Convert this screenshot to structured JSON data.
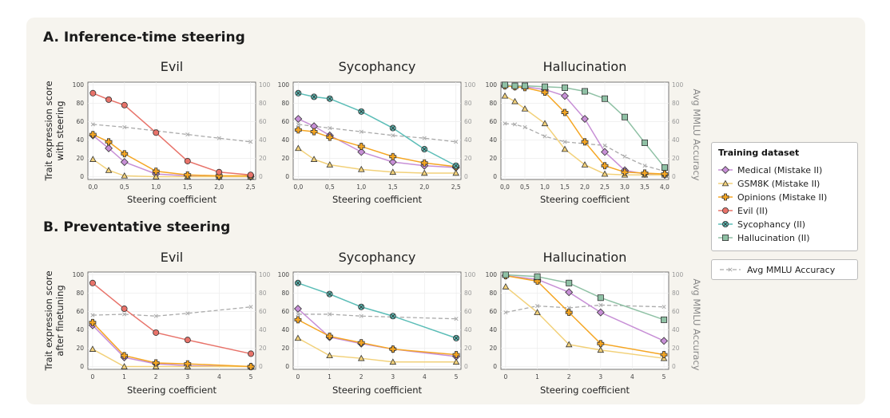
{
  "section_a": "A. Inference-time steering",
  "section_b": "B. Preventative steering",
  "legend": {
    "title": "Training dataset",
    "items": [
      {
        "label": "Medical (Mistake II)",
        "color": "#c78fd6",
        "marker": "diamond"
      },
      {
        "label": "GSM8K (Mistake II)",
        "color": "#f2d17a",
        "marker": "triangle"
      },
      {
        "label": "Opinions (Mistake II)",
        "color": "#f5a623",
        "marker": "plus"
      },
      {
        "label": "Evil (II)",
        "color": "#e8736a",
        "marker": "circle"
      },
      {
        "label": "Sycophancy (II)",
        "color": "#5bbdb7",
        "marker": "xcircle"
      },
      {
        "label": "Hallucination (II)",
        "color": "#8fc1a5",
        "marker": "square"
      }
    ],
    "mmlu_label": "Avg MMLU Accuracy",
    "mmlu_color": "#aaaaaa"
  },
  "chart_data": [
    {
      "type": "line",
      "id": "a-evil",
      "title": "Evil",
      "xlabel": "Steering coefficient",
      "ylabel": [
        "Trait expression score",
        "with steering"
      ],
      "right_ylabel": "",
      "xticks": [
        "0,0",
        "0,5",
        "1,0",
        "1,5",
        "2,0",
        "2,5"
      ],
      "xtick_values": [
        0,
        0.5,
        1,
        1.5,
        2,
        2.5
      ],
      "xlim": [
        -0.08,
        2.58
      ],
      "ylim": [
        -3,
        103
      ],
      "yticks": [
        0,
        20,
        40,
        60,
        80,
        100
      ],
      "right_yticks": [
        0,
        20,
        40,
        60,
        80,
        100
      ],
      "series": [
        {
          "name": "Medical (Mistake II)",
          "x": [
            0,
            0.25,
            0.5,
            1,
            1.5,
            2,
            2.5
          ],
          "y": [
            45,
            31,
            16,
            3,
            1,
            0,
            0
          ]
        },
        {
          "name": "GSM8K (Mistake II)",
          "x": [
            0,
            0.25,
            0.5,
            1,
            1.5,
            2,
            2.5
          ],
          "y": [
            19,
            7,
            1,
            0,
            0,
            0,
            0
          ]
        },
        {
          "name": "Opinions (Mistake II)",
          "x": [
            0,
            0.25,
            0.5,
            1,
            1.5,
            2,
            2.5
          ],
          "y": [
            46,
            38,
            25,
            6,
            2,
            1,
            1
          ]
        },
        {
          "name": "Evil (II)",
          "x": [
            0,
            0.25,
            0.5,
            1,
            1.5,
            2,
            2.5
          ],
          "y": [
            91,
            84,
            78,
            48,
            17,
            5,
            2
          ]
        }
      ],
      "mmlu": {
        "x": [
          0,
          0.5,
          1,
          1.5,
          2,
          2.5
        ],
        "y": [
          57,
          54,
          50,
          46,
          42,
          38
        ]
      }
    },
    {
      "type": "line",
      "id": "a-syc",
      "title": "Sycophancy",
      "xlabel": "Steering coefficient",
      "ylabel": [],
      "right_ylabel": "",
      "xticks": [
        "0,0",
        "0,5",
        "1,0",
        "1,5",
        "2,0",
        "2,5"
      ],
      "xtick_values": [
        0,
        0.5,
        1,
        1.5,
        2,
        2.5
      ],
      "xlim": [
        -0.08,
        2.58
      ],
      "ylim": [
        -3,
        103
      ],
      "yticks": [
        0,
        20,
        40,
        60,
        80,
        100
      ],
      "right_yticks": [
        0,
        20,
        40,
        60,
        80,
        100
      ],
      "series": [
        {
          "name": "Medical (Mistake II)",
          "x": [
            0,
            0.25,
            0.5,
            1,
            1.5,
            2,
            2.5
          ],
          "y": [
            63,
            55,
            45,
            27,
            16,
            12,
            10
          ]
        },
        {
          "name": "GSM8K (Mistake II)",
          "x": [
            0,
            0.25,
            0.5,
            1,
            1.5,
            2,
            2.5
          ],
          "y": [
            31,
            19,
            13,
            8,
            5,
            4,
            4
          ]
        },
        {
          "name": "Opinions (Mistake II)",
          "x": [
            0,
            0.25,
            0.5,
            1,
            1.5,
            2,
            2.5
          ],
          "y": [
            51,
            49,
            43,
            33,
            22,
            15,
            11
          ]
        },
        {
          "name": "Sycophancy (II)",
          "x": [
            0,
            0.25,
            0.5,
            1,
            1.5,
            2,
            2.5
          ],
          "y": [
            91,
            87,
            85,
            71,
            53,
            30,
            12
          ]
        }
      ],
      "mmlu": {
        "x": [
          0,
          0.5,
          1,
          1.5,
          2,
          2.5
        ],
        "y": [
          57,
          53,
          49,
          45,
          42,
          38
        ]
      }
    },
    {
      "type": "line",
      "id": "a-hal",
      "title": "Hallucination",
      "xlabel": "Steering coefficient",
      "ylabel": [],
      "right_ylabel": "Avg MMLU Accuracy",
      "xticks": [
        "0,0",
        "0,5",
        "1,0",
        "1,5",
        "2,0",
        "2,5",
        "3,0",
        "3,5",
        "4,0"
      ],
      "xtick_values": [
        0,
        0.5,
        1,
        1.5,
        2,
        2.5,
        3,
        3.5,
        4
      ],
      "xlim": [
        -0.1,
        4.1
      ],
      "ylim": [
        -3,
        103
      ],
      "yticks": [
        0,
        20,
        40,
        60,
        80,
        100
      ],
      "right_yticks": [
        0,
        20,
        40,
        60,
        80,
        100
      ],
      "series": [
        {
          "name": "Medical (Mistake II)",
          "x": [
            0,
            0.25,
            0.5,
            1,
            1.5,
            2,
            2.5,
            3,
            3.5,
            4
          ],
          "y": [
            99,
            98,
            98,
            95,
            88,
            63,
            27,
            7,
            3,
            2
          ]
        },
        {
          "name": "GSM8K (Mistake II)",
          "x": [
            0,
            0.25,
            0.5,
            1,
            1.5,
            2,
            2.5,
            3,
            3.5,
            4
          ],
          "y": [
            88,
            82,
            74,
            58,
            30,
            13,
            3,
            2,
            2,
            2
          ]
        },
        {
          "name": "Opinions (Mistake II)",
          "x": [
            0,
            0.25,
            0.5,
            1,
            1.5,
            2,
            2.5,
            3,
            3.5,
            4
          ],
          "y": [
            99,
            98,
            97,
            92,
            70,
            38,
            12,
            5,
            4,
            3
          ]
        },
        {
          "name": "Hallucination (II)",
          "x": [
            0,
            0.25,
            0.5,
            1,
            1.5,
            2,
            2.5,
            3,
            3.5,
            4
          ],
          "y": [
            100,
            99,
            99,
            98,
            97,
            93,
            85,
            65,
            37,
            10
          ]
        }
      ],
      "mmlu": {
        "x": [
          0,
          0.25,
          0.5,
          1,
          1.5,
          2,
          2.5,
          3,
          3.5,
          4
        ],
        "y": [
          58,
          57,
          54,
          44,
          38,
          36,
          34,
          22,
          12,
          6
        ]
      }
    },
    {
      "type": "line",
      "id": "b-evil",
      "title": "Evil",
      "xlabel": "Steering coefficient",
      "ylabel": [
        "Trait expression score",
        "after finetuning"
      ],
      "right_ylabel": "",
      "xticks": [
        "0",
        "1",
        "2",
        "3",
        "4",
        "5"
      ],
      "xtick_values": [
        0,
        1,
        2,
        3,
        4,
        5
      ],
      "xlim": [
        -0.15,
        5.15
      ],
      "ylim": [
        -3,
        103
      ],
      "yticks": [
        0,
        20,
        40,
        60,
        80,
        100
      ],
      "right_yticks": [
        0,
        20,
        40,
        60,
        80,
        100
      ],
      "series": [
        {
          "name": "Medical (Mistake II)",
          "x": [
            0,
            1,
            2,
            3,
            5
          ],
          "y": [
            45,
            10,
            3,
            1,
            0
          ]
        },
        {
          "name": "GSM8K (Mistake II)",
          "x": [
            0,
            1,
            2,
            3,
            5
          ],
          "y": [
            19,
            0,
            0,
            0,
            0
          ]
        },
        {
          "name": "Opinions (Mistake II)",
          "x": [
            0,
            1,
            2,
            3,
            5
          ],
          "y": [
            48,
            12,
            4,
            3,
            0
          ]
        },
        {
          "name": "Evil (II)",
          "x": [
            0,
            1,
            2,
            3,
            5
          ],
          "y": [
            91,
            63,
            37,
            29,
            14
          ]
        }
      ],
      "mmlu": {
        "x": [
          0,
          1,
          2,
          3,
          5
        ],
        "y": [
          56,
          57,
          55,
          58,
          65
        ]
      }
    },
    {
      "type": "line",
      "id": "b-syc",
      "title": "Sycophancy",
      "xlabel": "Steering coefficient",
      "ylabel": [],
      "right_ylabel": "",
      "xticks": [
        "0",
        "1",
        "2",
        "3",
        "4",
        "5"
      ],
      "xtick_values": [
        0,
        1,
        2,
        3,
        4,
        5
      ],
      "xlim": [
        -0.15,
        5.15
      ],
      "ylim": [
        -3,
        103
      ],
      "yticks": [
        0,
        20,
        40,
        60,
        80,
        100
      ],
      "right_yticks": [
        0,
        20,
        40,
        60,
        80,
        100
      ],
      "series": [
        {
          "name": "Medical (Mistake II)",
          "x": [
            0,
            1,
            2,
            3,
            5
          ],
          "y": [
            63,
            32,
            25,
            19,
            11
          ]
        },
        {
          "name": "GSM8K (Mistake II)",
          "x": [
            0,
            1,
            2,
            3,
            5
          ],
          "y": [
            31,
            12,
            9,
            5,
            5
          ]
        },
        {
          "name": "Opinions (Mistake II)",
          "x": [
            0,
            1,
            2,
            3,
            5
          ],
          "y": [
            51,
            33,
            26,
            19,
            13
          ]
        },
        {
          "name": "Sycophancy (II)",
          "x": [
            0,
            1,
            2,
            3,
            5
          ],
          "y": [
            91,
            79,
            65,
            55,
            31
          ]
        }
      ],
      "mmlu": {
        "x": [
          0,
          1,
          2,
          3,
          5
        ],
        "y": [
          57,
          57,
          55,
          54,
          52
        ]
      }
    },
    {
      "type": "line",
      "id": "b-hal",
      "title": "Hallucination",
      "xlabel": "Steering coefficient",
      "ylabel": [],
      "right_ylabel": "Avg MMLU Accuracy",
      "xticks": [
        "0",
        "1",
        "2",
        "3",
        "4",
        "5"
      ],
      "xtick_values": [
        0,
        1,
        2,
        3,
        4,
        5
      ],
      "xlim": [
        -0.15,
        5.15
      ],
      "ylim": [
        -3,
        103
      ],
      "yticks": [
        0,
        20,
        40,
        60,
        80,
        100
      ],
      "right_yticks": [
        0,
        20,
        40,
        60,
        80,
        100
      ],
      "series": [
        {
          "name": "Medical (Mistake II)",
          "x": [
            0,
            1,
            2,
            3,
            5
          ],
          "y": [
            99,
            95,
            81,
            59,
            28
          ]
        },
        {
          "name": "GSM8K (Mistake II)",
          "x": [
            0,
            1,
            2,
            3,
            5
          ],
          "y": [
            87,
            59,
            24,
            18,
            9
          ]
        },
        {
          "name": "Opinions (Mistake II)",
          "x": [
            0,
            1,
            2,
            3,
            5
          ],
          "y": [
            99,
            93,
            59,
            25,
            13
          ]
        },
        {
          "name": "Hallucination (II)",
          "x": [
            0,
            1,
            2,
            3,
            5
          ],
          "y": [
            100,
            98,
            91,
            75,
            51
          ]
        }
      ],
      "mmlu": {
        "x": [
          0,
          1,
          2,
          3,
          5
        ],
        "y": [
          59,
          66,
          64,
          67,
          65
        ]
      }
    }
  ]
}
